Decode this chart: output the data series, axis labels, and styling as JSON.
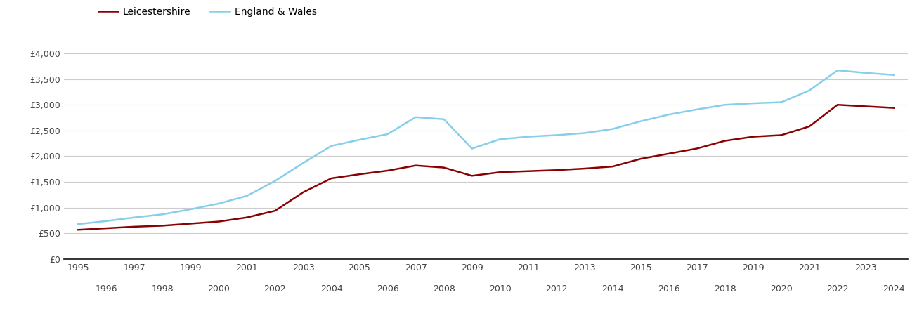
{
  "leicestershire": {
    "years": [
      1995,
      1996,
      1997,
      1998,
      1999,
      2000,
      2001,
      2002,
      2003,
      2004,
      2005,
      2006,
      2007,
      2008,
      2009,
      2010,
      2011,
      2012,
      2013,
      2014,
      2015,
      2016,
      2017,
      2018,
      2019,
      2020,
      2021,
      2022,
      2023,
      2024
    ],
    "values": [
      570,
      600,
      630,
      650,
      690,
      730,
      810,
      940,
      1300,
      1570,
      1650,
      1720,
      1820,
      1780,
      1620,
      1690,
      1710,
      1730,
      1760,
      1800,
      1950,
      2050,
      2150,
      2300,
      2380,
      2410,
      2580,
      3000,
      2970,
      2940
    ]
  },
  "england_wales": {
    "years": [
      1995,
      1996,
      1997,
      1998,
      1999,
      2000,
      2001,
      2002,
      2003,
      2004,
      2005,
      2006,
      2007,
      2008,
      2009,
      2010,
      2011,
      2012,
      2013,
      2014,
      2015,
      2016,
      2017,
      2018,
      2019,
      2020,
      2021,
      2022,
      2023,
      2024
    ],
    "values": [
      680,
      740,
      810,
      870,
      970,
      1080,
      1230,
      1520,
      1870,
      2200,
      2320,
      2430,
      2760,
      2720,
      2150,
      2330,
      2380,
      2410,
      2450,
      2530,
      2680,
      2810,
      2910,
      3000,
      3030,
      3050,
      3280,
      3670,
      3620,
      3580
    ]
  },
  "leicestershire_color": "#8B0000",
  "england_wales_color": "#87CEEB",
  "leicestershire_label": "Leicestershire",
  "england_wales_label": "England & Wales",
  "yticks": [
    0,
    500,
    1000,
    1500,
    2000,
    2500,
    3000,
    3500,
    4000
  ],
  "ylim": [
    0,
    4300
  ],
  "xlim": [
    1994.5,
    2024.5
  ],
  "background_color": "#ffffff",
  "grid_color": "#cccccc",
  "line_width": 1.8,
  "tick_fontsize": 9,
  "legend_fontsize": 10
}
